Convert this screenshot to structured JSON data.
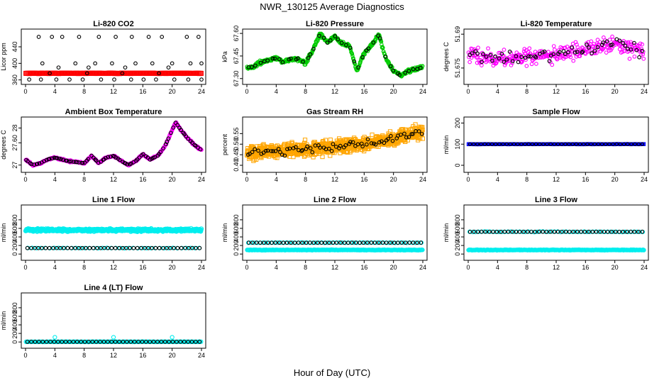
{
  "page_title": "NWR_130125  Average Diagnostics",
  "x_label": "Hour of Day (UTC)",
  "colors": {
    "black": "#000000",
    "red": "#ff0000",
    "green": "#00cc00",
    "magenta": "#ff00ff",
    "orange": "#ffa500",
    "blue": "#0000ff",
    "cyan": "#00eeee"
  },
  "chart_data": [
    {
      "id": "co2",
      "type": "scatter",
      "title": "Li-820 CO2",
      "ylabel": "Licor ppm",
      "xlim": [
        0,
        24
      ],
      "ylim": [
        356,
        476
      ],
      "yticks": [
        360,
        400,
        440
      ],
      "xticks": [
        0,
        4,
        8,
        12,
        16,
        20,
        24
      ],
      "series": [
        {
          "name": "red",
          "color": "red",
          "shape": "square",
          "size": 3,
          "gen": "band",
          "y": 376,
          "jitter": 0.6,
          "n": 220
        },
        {
          "name": "black",
          "color": "black",
          "shape": "circle",
          "size": 2.3,
          "gen": "pts",
          "x": [
            1.8,
            2.3,
            3.6,
            4.5,
            5.0,
            6.8,
            7.3,
            8.6,
            9.5,
            10.0,
            11.8,
            12.3,
            13.6,
            14.5,
            15.0,
            16.8,
            17.3,
            18.6,
            19.5,
            20.0,
            22.0,
            22.5,
            23.6,
            24.0
          ],
          "y": [
            464,
            400,
            464,
            390,
            464,
            400,
            464,
            390,
            400,
            464,
            400,
            464,
            390,
            464,
            400,
            464,
            400,
            464,
            390,
            400,
            464,
            400,
            464,
            400
          ]
        },
        {
          "name": "black-low",
          "color": "black",
          "shape": "circle",
          "size": 2.3,
          "gen": "pts",
          "x": [
            0.5,
            2.1,
            3.3,
            4.2,
            6.0,
            7.8,
            8.4,
            10.3,
            12.1,
            13.2,
            14.4,
            16.1,
            17.8,
            18.2,
            20.3,
            22.2,
            24.0
          ],
          "y": [
            361,
            361,
            376,
            361,
            361,
            361,
            376,
            361,
            361,
            376,
            361,
            361,
            361,
            376,
            361,
            361,
            361
          ]
        }
      ]
    },
    {
      "id": "pressure",
      "type": "scatter",
      "title": "Li-820 Pressure",
      "ylabel": "kPa",
      "xlim": [
        0,
        24
      ],
      "ylim": [
        67.28,
        67.61
      ],
      "yticks": [
        67.3,
        67.45,
        67.6
      ],
      "xticks": [
        0,
        4,
        8,
        12,
        16,
        20,
        24
      ],
      "series": [
        {
          "name": "green",
          "color": "green",
          "shape": "circle",
          "size": 2.2,
          "gen": "curve",
          "jitter": 0.012,
          "n": 520,
          "x": [
            0,
            1,
            2,
            3,
            4,
            5,
            6,
            7,
            8,
            9,
            10,
            11,
            12,
            13,
            14,
            15,
            16,
            17,
            18,
            19,
            20,
            21,
            22,
            23,
            24
          ],
          "y": [
            67.37,
            67.38,
            67.41,
            67.42,
            67.44,
            67.41,
            67.43,
            67.43,
            67.4,
            67.49,
            67.6,
            67.54,
            67.58,
            67.53,
            67.52,
            67.35,
            67.47,
            67.52,
            67.59,
            67.43,
            67.35,
            67.32,
            67.35,
            67.36,
            67.38
          ]
        },
        {
          "name": "black",
          "color": "black",
          "shape": "circle",
          "size": 2.3,
          "gen": "curve",
          "jitter": 0.004,
          "n": 45,
          "x": [
            0,
            1,
            2,
            3,
            4,
            5,
            6,
            7,
            8,
            9,
            10,
            11,
            12,
            13,
            14,
            15,
            16,
            17,
            18,
            19,
            20,
            21,
            22,
            23,
            24
          ],
          "y": [
            67.37,
            67.38,
            67.41,
            67.42,
            67.44,
            67.41,
            67.43,
            67.43,
            67.4,
            67.49,
            67.6,
            67.54,
            67.58,
            67.53,
            67.52,
            67.35,
            67.47,
            67.52,
            67.59,
            67.43,
            67.35,
            67.32,
            67.35,
            67.36,
            67.38
          ]
        }
      ]
    },
    {
      "id": "temp820",
      "type": "scatter",
      "title": "Li-820 Temperature",
      "ylabel": "degrees C",
      "xlim": [
        0,
        24
      ],
      "ylim": [
        51.669,
        51.691
      ],
      "yticks": [
        51.675,
        51.69
      ],
      "xticks": [
        0,
        4,
        8,
        12,
        16,
        20,
        24
      ],
      "series": [
        {
          "name": "magenta",
          "color": "magenta",
          "shape": "circle",
          "size": 2.3,
          "gen": "curve",
          "jitter": 0.0032,
          "n": 320,
          "x": [
            0,
            4,
            8,
            12,
            16,
            20,
            24
          ],
          "y": [
            51.681,
            51.679,
            51.68,
            51.681,
            51.683,
            51.686,
            51.682
          ]
        },
        {
          "name": "black",
          "color": "black",
          "shape": "circle",
          "size": 2.3,
          "gen": "curve",
          "jitter": 0.0022,
          "n": 60,
          "x": [
            0,
            4,
            8,
            12,
            16,
            20,
            24
          ],
          "y": [
            51.681,
            51.679,
            51.68,
            51.681,
            51.683,
            51.686,
            51.682
          ]
        }
      ]
    },
    {
      "id": "boxtemp",
      "type": "scatter",
      "title": "Ambient Box Temperature",
      "ylabel": "degrees C",
      "xlim": [
        0,
        24
      ],
      "ylim": [
        26.88,
        28.22
      ],
      "yticks": [
        27.0,
        27.6,
        28.0
      ],
      "xticks": [
        0,
        4,
        8,
        12,
        16,
        20,
        24
      ],
      "series": [
        {
          "name": "magenta",
          "color": "magenta",
          "shape": "circle",
          "size": 2.4,
          "gen": "curve",
          "jitter": 0.02,
          "n": 420,
          "x": [
            0,
            1,
            2,
            3,
            4,
            5,
            6,
            7,
            8,
            9,
            10,
            11,
            12,
            13,
            14,
            15,
            16,
            17,
            18,
            19,
            20,
            20.5,
            21,
            22,
            23,
            24
          ],
          "y": [
            27.15,
            27.0,
            27.05,
            27.15,
            27.2,
            27.15,
            27.1,
            27.08,
            27.05,
            27.25,
            27.05,
            27.2,
            27.25,
            27.12,
            27.0,
            27.1,
            27.3,
            27.15,
            27.25,
            27.5,
            27.95,
            28.15,
            28.0,
            27.75,
            27.55,
            27.4
          ]
        },
        {
          "name": "black",
          "color": "black",
          "shape": "circle",
          "size": 2.3,
          "gen": "curve",
          "jitter": 0.005,
          "n": 90,
          "x": [
            0,
            1,
            2,
            3,
            4,
            5,
            6,
            7,
            8,
            9,
            10,
            11,
            12,
            13,
            14,
            15,
            16,
            17,
            18,
            19,
            20,
            20.5,
            21,
            22,
            23,
            24
          ],
          "y": [
            27.15,
            27.0,
            27.05,
            27.15,
            27.2,
            27.15,
            27.1,
            27.08,
            27.05,
            27.25,
            27.05,
            27.2,
            27.25,
            27.12,
            27.0,
            27.1,
            27.3,
            27.15,
            27.25,
            27.5,
            27.95,
            28.15,
            28.0,
            27.75,
            27.55,
            27.4
          ]
        }
      ]
    },
    {
      "id": "rh",
      "type": "scatter",
      "title": "Gas Stream RH",
      "ylabel": "percent",
      "xlim": [
        0,
        24
      ],
      "ylim": [
        0.38,
        0.615
      ],
      "yticks": [
        0.4,
        0.45,
        0.5,
        0.55
      ],
      "xticks": [
        0,
        4,
        8,
        12,
        16,
        20,
        24
      ],
      "series": [
        {
          "name": "orange",
          "color": "orange",
          "shape": "square",
          "size": 2.6,
          "gen": "curve",
          "jitter": 0.03,
          "n": 900,
          "x": [
            0,
            6,
            12,
            18,
            24
          ],
          "y": [
            0.46,
            0.47,
            0.49,
            0.51,
            0.56
          ]
        },
        {
          "name": "black",
          "color": "black",
          "shape": "circle",
          "size": 2.3,
          "gen": "curve",
          "jitter": 0.022,
          "n": 70,
          "x": [
            0,
            6,
            12,
            18,
            24
          ],
          "y": [
            0.46,
            0.47,
            0.49,
            0.51,
            0.56
          ]
        }
      ]
    },
    {
      "id": "sample",
      "type": "scatter",
      "title": "Sample Flow",
      "ylabel": "ml/min",
      "xlim": [
        0,
        24
      ],
      "ylim": [
        -20,
        215
      ],
      "yticks": [
        0,
        100,
        200
      ],
      "xticks": [
        0,
        4,
        8,
        12,
        16,
        20,
        24
      ],
      "series": [
        {
          "name": "blue",
          "color": "blue",
          "shape": "square",
          "size": 2.2,
          "gen": "band",
          "y": 100,
          "jitter": 0.5,
          "n": 240
        },
        {
          "name": "black",
          "color": "black",
          "shape": "circle",
          "size": 2.1,
          "gen": "band",
          "y": 100,
          "jitter": 0.3,
          "n": 48
        }
      ]
    },
    {
      "id": "line1",
      "type": "scatter",
      "title": "Line 1 Flow",
      "ylabel": "ml/min",
      "xlim": [
        0,
        24
      ],
      "ylim": [
        -80,
        1080
      ],
      "yticks": [
        0,
        200,
        400,
        600,
        800
      ],
      "xticks": [
        0,
        4,
        8,
        12,
        16,
        20,
        24
      ],
      "series": [
        {
          "name": "cyan",
          "color": "cyan",
          "shape": "circle",
          "size": 2.8,
          "gen": "band",
          "y": 560,
          "jitter": 28,
          "n": 600
        },
        {
          "name": "cyan-low",
          "color": "cyan",
          "shape": "circle",
          "size": 2.6,
          "gen": "band",
          "y": 140,
          "jitter": 4,
          "n": 40
        },
        {
          "name": "black",
          "color": "black",
          "shape": "circle",
          "size": 2.3,
          "gen": "band",
          "y": 140,
          "jitter": 1,
          "n": 48
        }
      ]
    },
    {
      "id": "line2",
      "type": "scatter",
      "title": "Line 2 Flow",
      "ylabel": "ml/min",
      "xlim": [
        0,
        24
      ],
      "ylim": [
        -80,
        1080
      ],
      "yticks": [
        0,
        200,
        400,
        600,
        800
      ],
      "xticks": [
        0,
        4,
        8,
        12,
        16,
        20,
        24
      ],
      "series": [
        {
          "name": "cyan",
          "color": "cyan",
          "shape": "circle",
          "size": 2.6,
          "gen": "band",
          "y": 95,
          "jitter": 6,
          "n": 260
        },
        {
          "name": "cyan-hi",
          "color": "cyan",
          "shape": "circle",
          "size": 2.6,
          "gen": "band",
          "y": 265,
          "jitter": 4,
          "n": 60
        },
        {
          "name": "black",
          "color": "black",
          "shape": "circle",
          "size": 2.3,
          "gen": "band",
          "y": 265,
          "jitter": 1,
          "n": 46
        }
      ]
    },
    {
      "id": "line3",
      "type": "scatter",
      "title": "Line 3 Flow",
      "ylabel": "ml/min",
      "xlim": [
        0,
        24
      ],
      "ylim": [
        -80,
        1080
      ],
      "yticks": [
        0,
        200,
        400,
        600,
        800
      ],
      "xticks": [
        0,
        4,
        8,
        12,
        16,
        20,
        24
      ],
      "series": [
        {
          "name": "cyan",
          "color": "cyan",
          "shape": "circle",
          "size": 2.6,
          "gen": "band",
          "y": 95,
          "jitter": 6,
          "n": 260
        },
        {
          "name": "cyan-hi",
          "color": "cyan",
          "shape": "circle",
          "size": 2.6,
          "gen": "band",
          "y": 520,
          "jitter": 6,
          "n": 60
        },
        {
          "name": "black",
          "color": "black",
          "shape": "circle",
          "size": 2.3,
          "gen": "band",
          "y": 520,
          "jitter": 1,
          "n": 46
        }
      ]
    },
    {
      "id": "line4",
      "type": "scatter",
      "title": "Line 4 (LT) Flow",
      "ylabel": "ml/min",
      "xlim": [
        0,
        24
      ],
      "ylim": [
        -80,
        1080
      ],
      "yticks": [
        0,
        200,
        400,
        600,
        800
      ],
      "xticks": [
        0,
        4,
        8,
        12,
        16,
        20,
        24
      ],
      "series": [
        {
          "name": "cyan",
          "color": "cyan",
          "shape": "circle",
          "size": 2.6,
          "gen": "band",
          "y": 5,
          "jitter": 3,
          "n": 180
        },
        {
          "name": "cyan-spikes",
          "color": "cyan",
          "shape": "circle",
          "size": 2.6,
          "gen": "pts",
          "x": [
            4,
            12,
            20
          ],
          "y": [
            110,
            110,
            110
          ]
        },
        {
          "name": "black",
          "color": "black",
          "shape": "circle",
          "size": 2.3,
          "gen": "band",
          "y": 5,
          "jitter": 1,
          "n": 46
        }
      ]
    }
  ]
}
